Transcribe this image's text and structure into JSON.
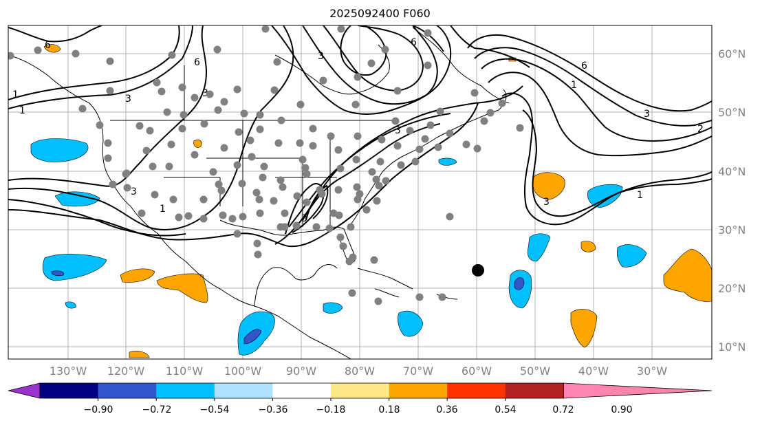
{
  "title": "2025092400 F060",
  "lat_labels": [
    "60°N",
    "50°N",
    "40°N",
    "30°N",
    "20°N",
    "10°N"
  ],
  "lon_labels": [
    "130°W",
    "120°W",
    "110°W",
    "100°W",
    "90°W",
    "80°W",
    "70°W",
    "60°W",
    "50°W",
    "40°W",
    "30°W"
  ],
  "contour_labels": [
    "6",
    "6",
    "6",
    "3",
    "3",
    "3",
    "3",
    "1",
    "1",
    "1",
    "6",
    "3",
    "3",
    "1",
    "1",
    "3",
    "2",
    "3"
  ],
  "colorbar": {
    "colors": [
      "#9933cc",
      "#000080",
      "#3355cc",
      "#00bfff",
      "#aee2ff",
      "#ffffff",
      "#ffe88a",
      "#ffa500",
      "#ff3300",
      "#b22222",
      "#ff85b0"
    ],
    "tick_labels": [
      "−0.90",
      "−0.72",
      "−0.54",
      "−0.36",
      "−0.18",
      "0.18",
      "0.36",
      "0.54",
      "0.72",
      "0.90"
    ]
  },
  "colors": {
    "positive_fill": "#ffa500",
    "negative_fill": "#00bfff",
    "strong_negative_fill": "#3355cc",
    "station_dot": "#808080",
    "storm_marker": "#000000"
  }
}
